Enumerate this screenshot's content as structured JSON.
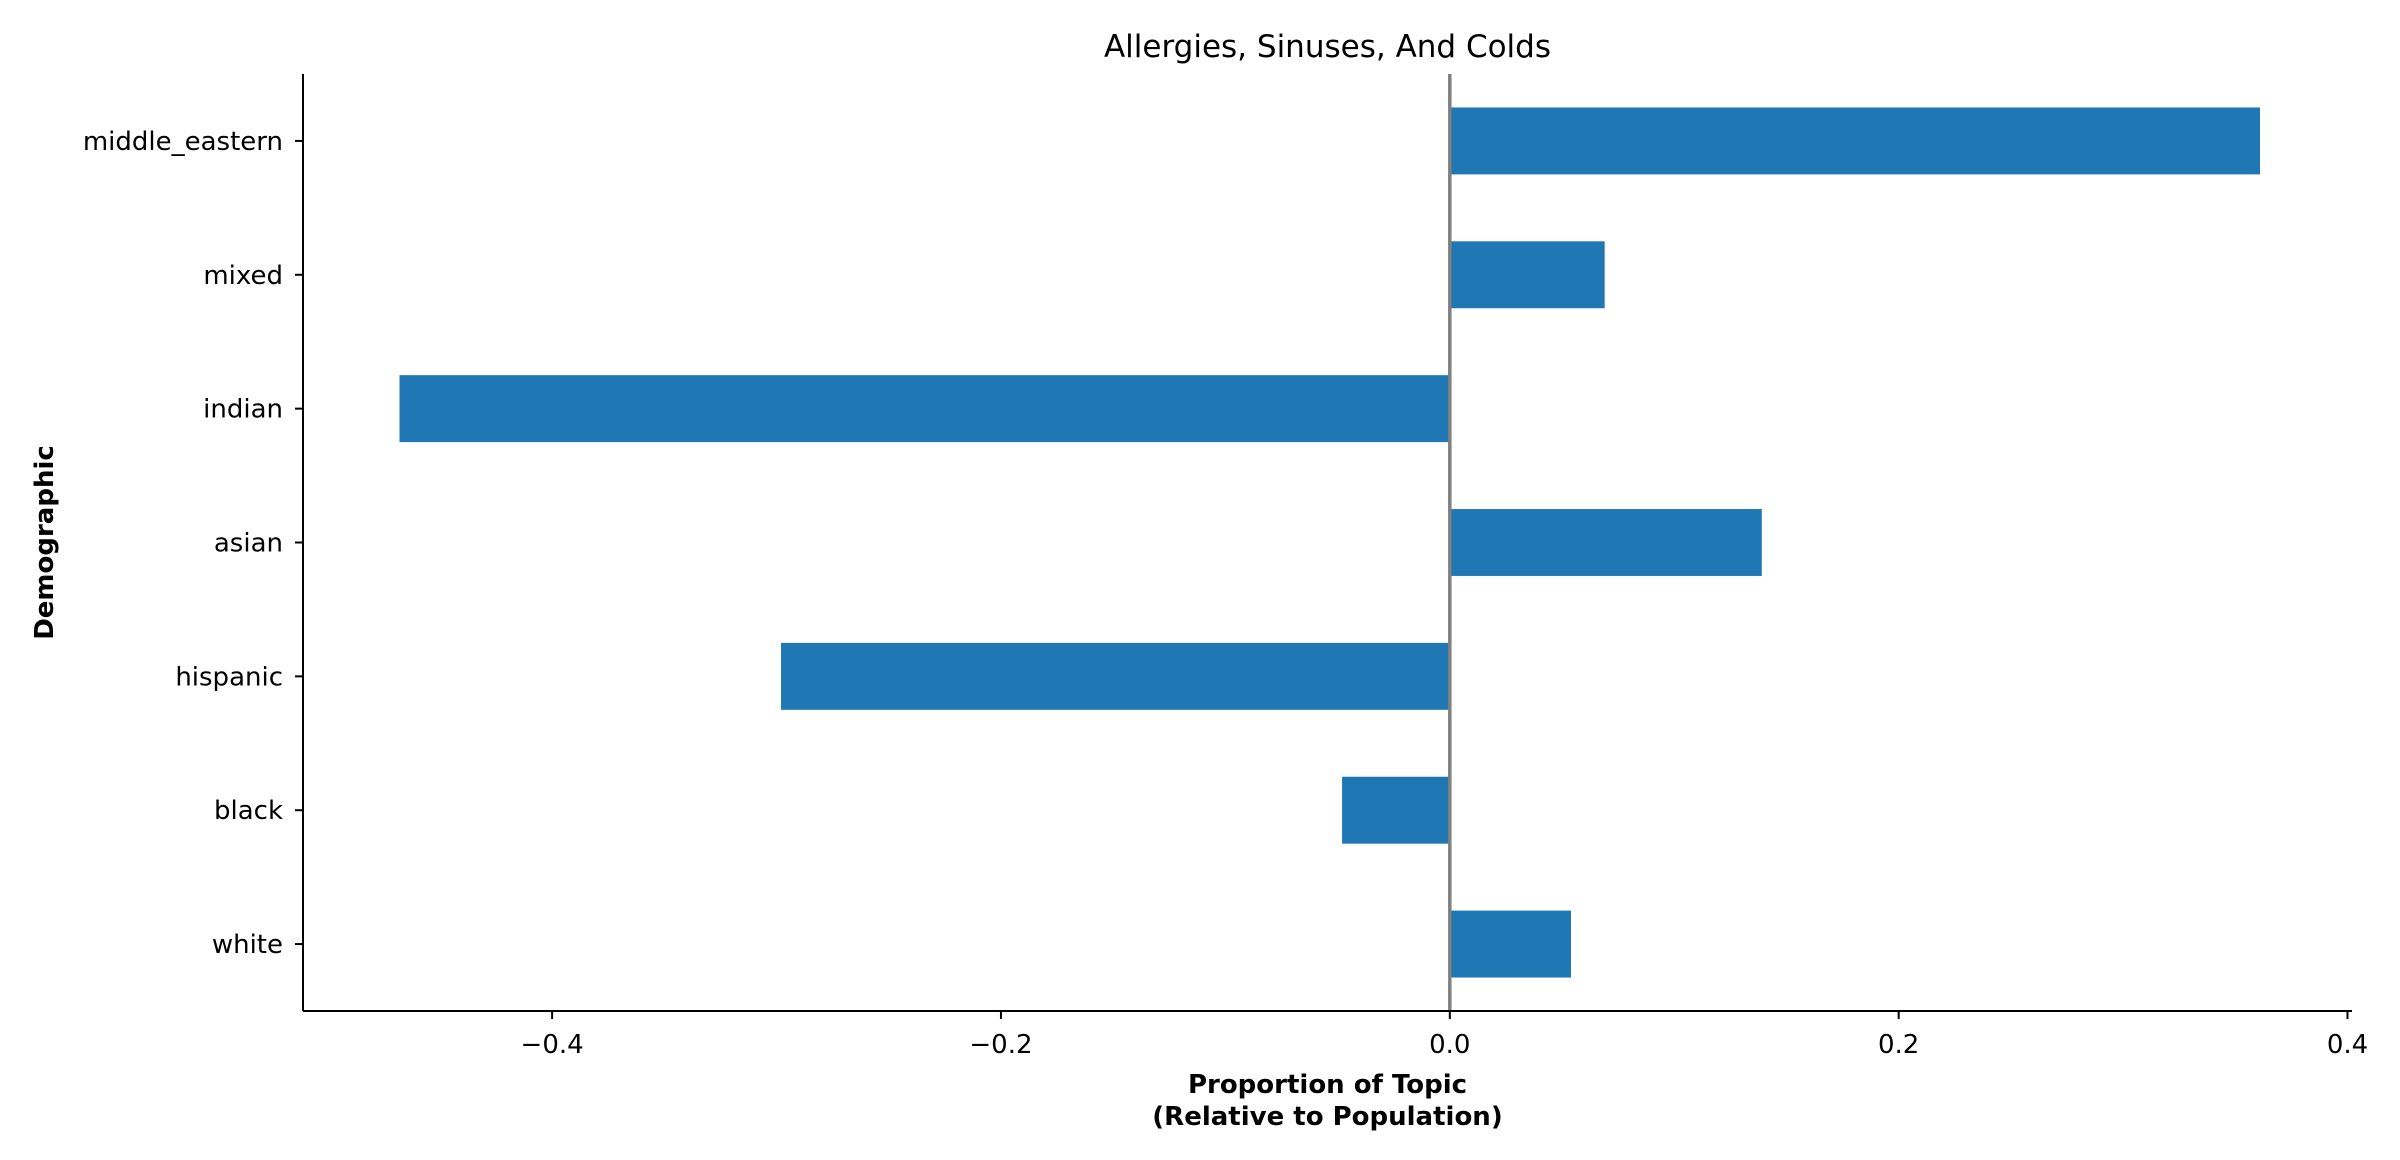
{
  "chart_data": {
    "type": "bar",
    "orientation": "horizontal",
    "title": "Allergies, Sinuses, And Colds",
    "xlabel_line1": "Proportion of Topic",
    "xlabel_line2": "(Relative to Population)",
    "ylabel": "Demographic",
    "categories": [
      "middle_eastern",
      "mixed",
      "indian",
      "asian",
      "hispanic",
      "black",
      "white"
    ],
    "values": [
      0.361,
      0.069,
      -0.468,
      0.139,
      -0.298,
      -0.048,
      0.054
    ],
    "xlim": [
      -0.511,
      0.402
    ],
    "xticks": [
      -0.4,
      -0.2,
      0.0,
      0.2,
      0.4
    ],
    "xtick_labels": [
      "−0.4",
      "−0.2",
      "0.0",
      "0.2",
      "0.4"
    ],
    "bar_color": "#1f77b4",
    "zero_line_color": "#808080",
    "grid": false,
    "legend": "none"
  }
}
